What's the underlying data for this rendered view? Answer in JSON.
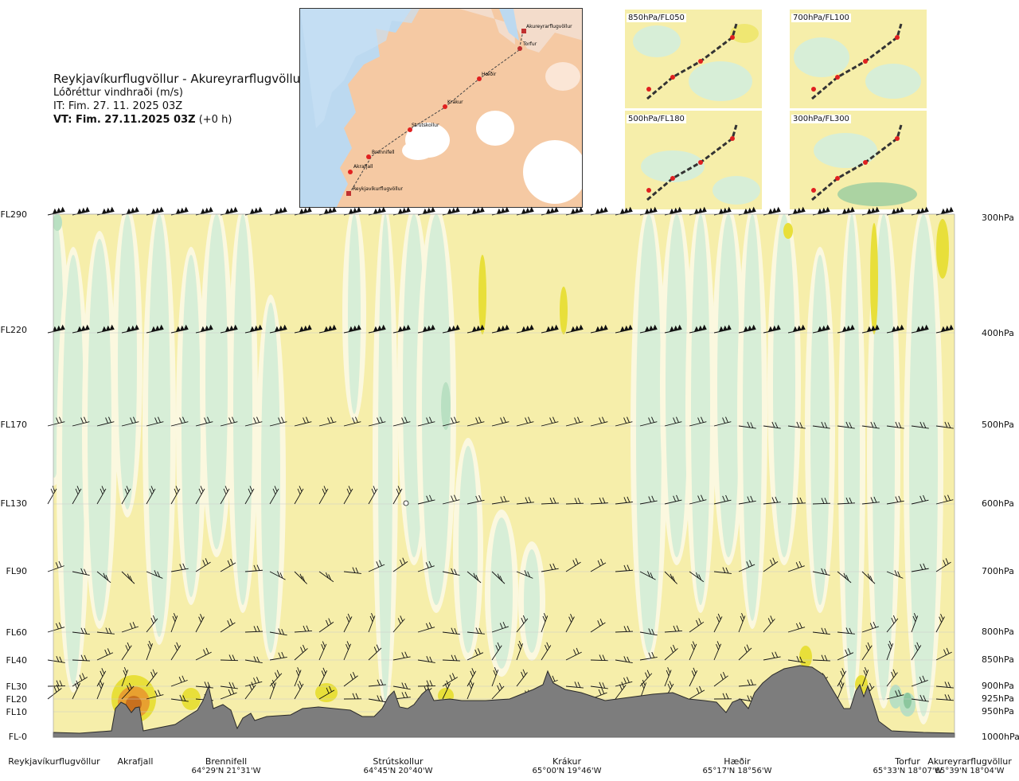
{
  "header": {
    "route": "Reykjavíkurflugvöllur - Akureyrarflugvöllur",
    "product": "Lóðréttur vindhraði (m/s)",
    "init_time": "IT: Fim. 27. 11. 2025 03Z",
    "valid_prefix": "VT: Fim. 27.11.2025 03Z",
    "valid_suffix": "(+0 h)"
  },
  "route_map": {
    "waypoints": [
      "Akureyrarflugvöllur",
      "Torfur",
      "Hæðir",
      "Krákur",
      "Strútskollur",
      "Brennifell",
      "Akrafjall",
      "Reykjavíkurflugvöllur"
    ]
  },
  "level_maps": [
    {
      "label": "850hPa/FL050"
    },
    {
      "label": "700hPa/FL100"
    },
    {
      "label": "500hPa/FL180"
    },
    {
      "label": "300hPa/FL300"
    }
  ],
  "colors": {
    "yellow": "#f6eeaa",
    "light_green": "#d7eed7",
    "pale": "#fbf8df",
    "mid_green": "#b9e0c2",
    "dark_green": "#8cc79e",
    "bright_yellow": "#e8df3a",
    "orange": "#e8a030",
    "brown": "#c8701e",
    "terrain": "#7d7d7d",
    "land": "#f5c9a3",
    "sea": "#bcd9f0"
  },
  "chart_data": {
    "type": "heatmap",
    "title": "Lóðréttur vindhraði (m/s)",
    "variable": "vertical velocity (m/s)",
    "left_axis_levels": [
      "FL290",
      "FL220",
      "FL170",
      "FL130",
      "FL90",
      "FL60",
      "FL40",
      "FL30",
      "FL20",
      "FL10",
      "FL-0"
    ],
    "right_axis_levels": [
      "300hPa",
      "400hPa",
      "500hPa",
      "600hPa",
      "700hPa",
      "800hPa",
      "850hPa",
      "900hPa",
      "925hPa",
      "950hPa",
      "1000hPa"
    ],
    "barb_levels_hpa": [
      300,
      400,
      500,
      600,
      700,
      800,
      850,
      900,
      925
    ],
    "stations": [
      {
        "name": "Reykjavíkurflugvöllur",
        "coord": ""
      },
      {
        "name": "Akrafjall",
        "coord": ""
      },
      {
        "name": "Brennifell",
        "coord": "64°29'N 21°31'W"
      },
      {
        "name": "Strútskollur",
        "coord": "64°45'N 20°40'W"
      },
      {
        "name": "Krákur",
        "coord": "65°00'N 19°46'W"
      },
      {
        "name": "Hæðir",
        "coord": "65°17'N 18°56'W"
      },
      {
        "name": "Torfur",
        "coord": "65°33'N 18°07'W"
      },
      {
        "name": "Akureyrarflugvöllur",
        "coord": "65°39'N 18°04'W"
      }
    ]
  }
}
